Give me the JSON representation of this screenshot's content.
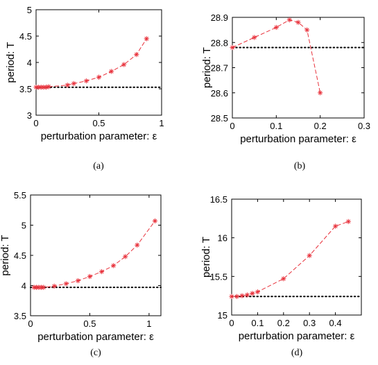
{
  "chart_data": [
    {
      "type": "line",
      "caption": "(a)",
      "xlabel": "perturbation parameter: ε",
      "ylabel": "period: T",
      "xlim": [
        0,
        1
      ],
      "ylim": [
        3,
        5
      ],
      "xticks": [
        0,
        0.5,
        1
      ],
      "xtick_labels": [
        "0",
        "0.5",
        "1"
      ],
      "yticks": [
        3,
        3.5,
        4,
        4.5,
        5
      ],
      "ytick_labels": [
        "3",
        "3.5",
        "4",
        "4.5",
        "5"
      ],
      "reference_line": 3.53,
      "series": [
        {
          "x": [
            0,
            0.02,
            0.04,
            0.06,
            0.08,
            0.1,
            0.25,
            0.3,
            0.4,
            0.5,
            0.6,
            0.7,
            0.8,
            0.88
          ],
          "y": [
            3.53,
            3.53,
            3.53,
            3.53,
            3.53,
            3.54,
            3.57,
            3.6,
            3.65,
            3.72,
            3.83,
            3.96,
            4.15,
            4.45
          ]
        }
      ],
      "colors": {
        "series": "#e8323c",
        "reference": "#000000"
      }
    },
    {
      "type": "line",
      "caption": "(b)",
      "xlabel": "perturbation parameter: ε",
      "ylabel": "period: T",
      "xlim": [
        0,
        0.3
      ],
      "ylim": [
        28.5,
        28.9
      ],
      "xticks": [
        0,
        0.1,
        0.2,
        0.3
      ],
      "xtick_labels": [
        "0",
        "0.1",
        "0.2",
        "0.3"
      ],
      "yticks": [
        28.5,
        28.6,
        28.7,
        28.8,
        28.9
      ],
      "ytick_labels": [
        "28.5",
        "28.6",
        "28.7",
        "28.8",
        "28.9"
      ],
      "reference_line": 28.78,
      "series": [
        {
          "x": [
            0,
            0.05,
            0.1,
            0.13,
            0.15,
            0.17,
            0.2
          ],
          "y": [
            28.78,
            28.82,
            28.86,
            28.89,
            28.88,
            28.85,
            28.6
          ]
        }
      ],
      "colors": {
        "series": "#e8323c",
        "reference": "#000000"
      }
    },
    {
      "type": "line",
      "caption": "(c)",
      "xlabel": "perturbation parameter: ε",
      "ylabel": "period: T",
      "xlim": [
        0,
        1.1
      ],
      "ylim": [
        3.5,
        5.5
      ],
      "xticks": [
        0,
        0.5,
        1
      ],
      "xtick_labels": [
        "0",
        "0.5",
        "1"
      ],
      "yticks": [
        3.5,
        4,
        4.5,
        5,
        5.5
      ],
      "ytick_labels": [
        "3.5",
        "4",
        "4.5",
        "5",
        "5.5"
      ],
      "reference_line": 3.97,
      "series": [
        {
          "x": [
            0.03,
            0.05,
            0.07,
            0.09,
            0.11,
            0.2,
            0.3,
            0.4,
            0.5,
            0.6,
            0.7,
            0.8,
            0.9,
            1.05
          ],
          "y": [
            3.97,
            3.97,
            3.97,
            3.97,
            3.97,
            3.99,
            4.03,
            4.08,
            4.15,
            4.23,
            4.33,
            4.48,
            4.67,
            5.07
          ]
        }
      ],
      "colors": {
        "series": "#e8323c",
        "reference": "#000000"
      }
    },
    {
      "type": "line",
      "caption": "(d)",
      "xlabel": "perturbation parameter: ε",
      "ylabel": "period: T",
      "xlim": [
        0,
        0.5
      ],
      "ylim": [
        15,
        16.5
      ],
      "xticks": [
        0,
        0.1,
        0.2,
        0.3,
        0.4
      ],
      "xtick_labels": [
        "0",
        "0.1",
        "0.2",
        "0.3",
        "0.4"
      ],
      "yticks": [
        15,
        15.5,
        16,
        16.5
      ],
      "ytick_labels": [
        "15",
        "15.5",
        "16",
        "16.5"
      ],
      "reference_line": 15.24,
      "series": [
        {
          "x": [
            0,
            0.02,
            0.04,
            0.06,
            0.08,
            0.1,
            0.2,
            0.3,
            0.4,
            0.45
          ],
          "y": [
            15.24,
            15.24,
            15.25,
            15.26,
            15.28,
            15.3,
            15.47,
            15.77,
            16.15,
            16.21
          ]
        }
      ],
      "colors": {
        "series": "#e8323c",
        "reference": "#000000"
      }
    }
  ]
}
